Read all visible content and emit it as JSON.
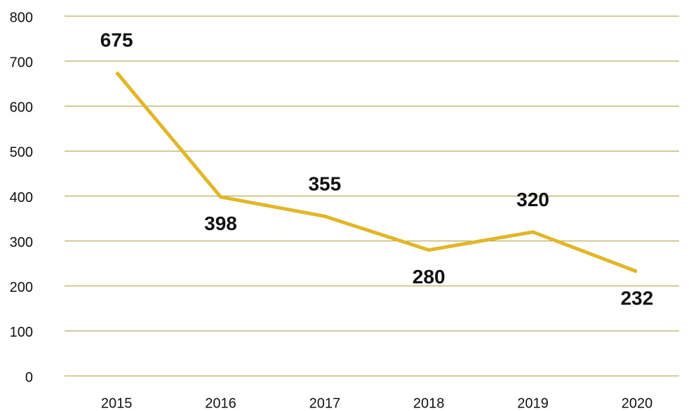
{
  "chart_data": {
    "type": "line",
    "categories": [
      "2015",
      "2016",
      "2017",
      "2018",
      "2019",
      "2020"
    ],
    "values": [
      675,
      398,
      355,
      280,
      320,
      232
    ],
    "color": "#e2b627",
    "ylim": [
      0,
      800
    ],
    "yticks": [
      0,
      100,
      200,
      300,
      400,
      500,
      600,
      700,
      800
    ],
    "grid": true,
    "grid_color": "#a89a3a"
  }
}
